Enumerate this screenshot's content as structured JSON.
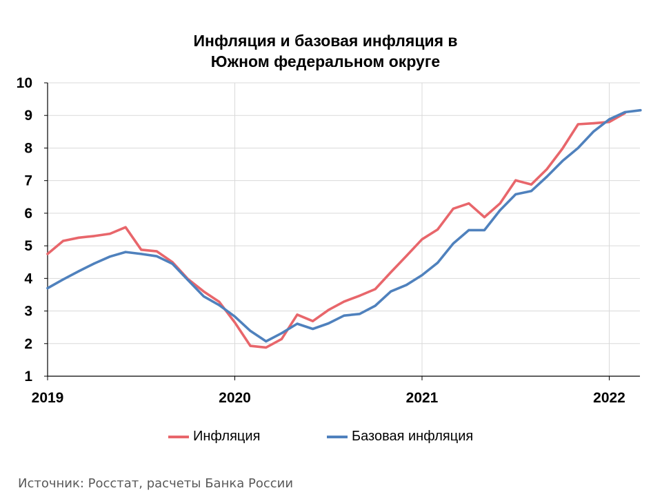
{
  "chart_data": {
    "type": "line",
    "title_lines": [
      "Инфляция и базовая инфляция в",
      "Южном федеральном округе"
    ],
    "x_tick_labels": [
      "2019",
      "2020",
      "2021",
      "2022"
    ],
    "x_start": "2019-01",
    "x_end": "2022-03",
    "ylim": [
      1,
      10
    ],
    "y_ticks": [
      1,
      2,
      3,
      4,
      5,
      6,
      7,
      8,
      9,
      10
    ],
    "grid": true,
    "legend_position": "bottom",
    "series": [
      {
        "name": "Инфляция",
        "color": "#e8666b",
        "x": [
          "2019-01",
          "2019-02",
          "2019-03",
          "2019-04",
          "2019-05",
          "2019-06",
          "2019-07",
          "2019-08",
          "2019-09",
          "2019-10",
          "2019-11",
          "2019-12",
          "2020-01",
          "2020-02",
          "2020-03",
          "2020-04",
          "2020-05",
          "2020-06",
          "2020-07",
          "2020-08",
          "2020-09",
          "2020-10",
          "2020-11",
          "2020-12",
          "2021-01",
          "2021-02",
          "2021-03",
          "2021-04",
          "2021-05",
          "2021-06",
          "2021-07",
          "2021-08",
          "2021-09",
          "2021-10",
          "2021-11",
          "2021-12",
          "2022-01",
          "2022-02"
        ],
        "values": [
          4.75,
          5.15,
          5.25,
          5.3,
          5.37,
          5.57,
          4.88,
          4.83,
          4.5,
          3.98,
          3.6,
          3.28,
          2.65,
          1.93,
          1.88,
          2.14,
          2.89,
          2.69,
          3.03,
          3.29,
          3.47,
          3.67,
          4.19,
          4.69,
          5.2,
          5.5,
          6.14,
          6.3,
          5.88,
          6.3,
          7.01,
          6.88,
          7.35,
          7.98,
          8.73,
          8.76,
          8.8,
          9.07
        ]
      },
      {
        "name": "Базовая инфляция",
        "color": "#4f81bd",
        "x": [
          "2019-01",
          "2019-02",
          "2019-03",
          "2019-04",
          "2019-05",
          "2019-06",
          "2019-07",
          "2019-08",
          "2019-09",
          "2019-10",
          "2019-11",
          "2019-12",
          "2020-01",
          "2020-02",
          "2020-03",
          "2020-04",
          "2020-05",
          "2020-06",
          "2020-07",
          "2020-08",
          "2020-09",
          "2020-10",
          "2020-11",
          "2020-12",
          "2021-01",
          "2021-02",
          "2021-03",
          "2021-04",
          "2021-05",
          "2021-06",
          "2021-07",
          "2021-08",
          "2021-09",
          "2021-10",
          "2021-11",
          "2021-12",
          "2022-01",
          "2022-02",
          "2022-03"
        ],
        "values": [
          3.7,
          3.97,
          4.22,
          4.46,
          4.67,
          4.81,
          4.75,
          4.68,
          4.45,
          3.95,
          3.45,
          3.18,
          2.83,
          2.39,
          2.07,
          2.32,
          2.61,
          2.45,
          2.62,
          2.86,
          2.91,
          3.16,
          3.6,
          3.8,
          4.1,
          4.48,
          5.07,
          5.48,
          5.48,
          6.09,
          6.58,
          6.68,
          7.12,
          7.6,
          8.0,
          8.51,
          8.88,
          9.1,
          9.16
        ]
      }
    ]
  },
  "source": "Источник: Росстат, расчеты Банка России"
}
